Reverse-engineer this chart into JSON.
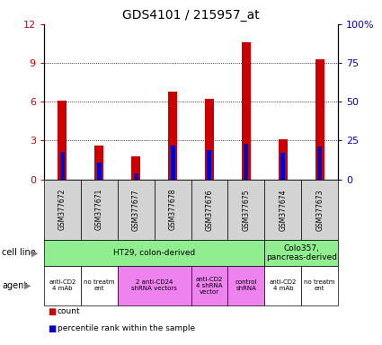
{
  "title": "GDS4101 / 215957_at",
  "samples": [
    "GSM377672",
    "GSM377671",
    "GSM377677",
    "GSM377678",
    "GSM377676",
    "GSM377675",
    "GSM377674",
    "GSM377673"
  ],
  "red_values": [
    6.1,
    2.6,
    1.8,
    6.8,
    6.2,
    10.6,
    3.1,
    9.3
  ],
  "blue_percentiles": [
    18,
    11,
    4,
    22,
    19,
    23,
    17,
    21
  ],
  "ylim_left": [
    0,
    12
  ],
  "ylim_right": [
    0,
    100
  ],
  "yticks_left": [
    0,
    3,
    6,
    9,
    12
  ],
  "yticks_right": [
    0,
    25,
    50,
    75,
    100
  ],
  "ytick_labels_right": [
    "0",
    "25",
    "50",
    "75",
    "100%"
  ],
  "bar_color_red": "#cc0000",
  "bar_color_blue": "#0000cc",
  "red_bar_width": 0.25,
  "blue_bar_width": 0.12,
  "legend_red": "count",
  "legend_blue": "percentile rank within the sample",
  "left_axis_color": "#cc0000",
  "right_axis_color": "#0000cc",
  "sample_box_color": "#d3d3d3",
  "cell_line_groups": [
    {
      "label": "HT29, colon-derived",
      "start": 0,
      "end": 6,
      "color": "#90ee90"
    },
    {
      "label": "Colo357,\npancreas-derived",
      "start": 6,
      "end": 8,
      "color": "#90ee90"
    }
  ],
  "agent_groups": [
    {
      "label": "anti-CD2\n4 mAb",
      "start": 0,
      "end": 1,
      "color": "#ffffff"
    },
    {
      "label": "no treatm\nent",
      "start": 1,
      "end": 2,
      "color": "#ffffff"
    },
    {
      "label": "2 anti-CD24\nshRNA vectors",
      "start": 2,
      "end": 4,
      "color": "#ee82ee"
    },
    {
      "label": "anti-CD2\n4 shRNA\nvector",
      "start": 4,
      "end": 5,
      "color": "#ee82ee"
    },
    {
      "label": "control\nshRNA",
      "start": 5,
      "end": 6,
      "color": "#ee82ee"
    },
    {
      "label": "anti-CD2\n4 mAb",
      "start": 6,
      "end": 7,
      "color": "#ffffff"
    },
    {
      "label": "no treatm\nent",
      "start": 7,
      "end": 8,
      "color": "#ffffff"
    }
  ]
}
